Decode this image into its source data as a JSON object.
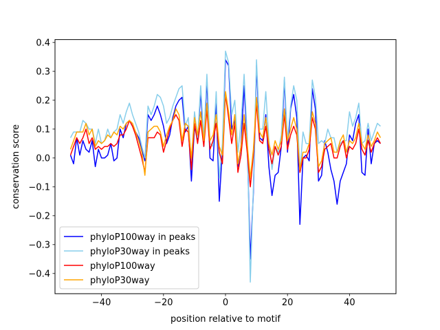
{
  "chart_data": {
    "type": "line",
    "title": "",
    "xlabel": "position relative to motif",
    "ylabel": "conservation score",
    "xlim": [
      -55,
      55
    ],
    "ylim": [
      -0.47,
      0.41
    ],
    "xticks": [
      -40,
      -20,
      0,
      20,
      40
    ],
    "yticks": [
      -0.4,
      -0.3,
      -0.2,
      -0.1,
      0.0,
      0.1,
      0.2,
      0.3,
      0.4
    ],
    "xtick_labels": [
      "−40",
      "−20",
      "0",
      "20",
      "40"
    ],
    "ytick_labels": [
      "−0.4",
      "−0.3",
      "−0.2",
      "−0.1",
      "0.0",
      "0.1",
      "0.2",
      "0.3",
      "0.4"
    ],
    "grid": false,
    "legend_position": "lower-left",
    "x": [
      -50,
      -49,
      -48,
      -47,
      -46,
      -45,
      -44,
      -43,
      -42,
      -41,
      -40,
      -39,
      -38,
      -37,
      -36,
      -35,
      -34,
      -33,
      -32,
      -31,
      -30,
      -29,
      -28,
      -27,
      -26,
      -25,
      -24,
      -23,
      -22,
      -21,
      -20,
      -19,
      -18,
      -17,
      -16,
      -15,
      -14,
      -13,
      -12,
      -11,
      -10,
      -9,
      -8,
      -7,
      -6,
      -5,
      -4,
      -3,
      -2,
      -1,
      0,
      1,
      2,
      3,
      4,
      5,
      6,
      7,
      8,
      9,
      10,
      11,
      12,
      13,
      14,
      15,
      16,
      17,
      18,
      19,
      20,
      21,
      22,
      23,
      24,
      25,
      26,
      27,
      28,
      29,
      30,
      31,
      32,
      33,
      34,
      35,
      36,
      37,
      38,
      39,
      40,
      41,
      42,
      43,
      44,
      45,
      46,
      47,
      48,
      49,
      50
    ],
    "series": [
      {
        "name": "phyloP100way in peaks",
        "color": "#0000ff",
        "values": [
          0.01,
          -0.02,
          0.07,
          0.01,
          0.06,
          0.03,
          0.02,
          0.06,
          -0.03,
          0.03,
          0.0,
          0.0,
          0.01,
          0.05,
          -0.01,
          0.0,
          0.1,
          0.07,
          0.12,
          0.13,
          0.11,
          0.09,
          0.07,
          0.03,
          -0.01,
          0.15,
          0.13,
          0.15,
          0.18,
          0.15,
          0.11,
          0.05,
          0.08,
          0.14,
          0.18,
          0.2,
          0.21,
          0.09,
          0.11,
          -0.08,
          0.11,
          0.06,
          0.23,
          0.04,
          0.27,
          0.0,
          -0.01,
          0.19,
          -0.15,
          0.03,
          0.34,
          0.32,
          0.1,
          0.13,
          -0.03,
          0.04,
          0.25,
          0.05,
          -0.35,
          -0.12,
          0.32,
          0.07,
          0.06,
          0.15,
          -0.03,
          -0.13,
          -0.06,
          -0.05,
          0.04,
          0.27,
          0.02,
          0.17,
          0.22,
          0.14,
          -0.23,
          0.0,
          0.01,
          -0.01,
          0.24,
          0.17,
          -0.08,
          -0.06,
          0.06,
          0.02,
          -0.04,
          -0.08,
          -0.16,
          -0.08,
          -0.05,
          -0.02,
          0.08,
          0.06,
          0.12,
          0.15,
          -0.05,
          -0.06,
          0.1,
          -0.02,
          0.05,
          0.06,
          0.05
        ]
      },
      {
        "name": "phyloP30way in peaks",
        "color": "#87ceeb",
        "values": [
          0.07,
          0.09,
          0.09,
          0.09,
          0.13,
          0.12,
          0.1,
          0.1,
          0.05,
          0.1,
          0.05,
          0.06,
          0.1,
          0.07,
          0.09,
          0.1,
          0.15,
          0.12,
          0.16,
          0.19,
          0.15,
          0.12,
          0.09,
          0.04,
          0.0,
          0.18,
          0.15,
          0.18,
          0.22,
          0.21,
          0.18,
          0.12,
          0.14,
          0.18,
          0.21,
          0.24,
          0.25,
          0.11,
          0.14,
          -0.02,
          0.16,
          0.07,
          0.25,
          0.07,
          0.29,
          0.05,
          0.04,
          0.23,
          -0.07,
          0.05,
          0.37,
          0.33,
          0.15,
          0.2,
          0.02,
          0.12,
          0.29,
          0.08,
          -0.43,
          -0.1,
          0.34,
          0.1,
          0.1,
          0.23,
          0.06,
          -0.04,
          0.04,
          0.02,
          0.08,
          0.28,
          0.06,
          0.18,
          0.25,
          0.2,
          -0.05,
          0.09,
          0.05,
          0.05,
          0.27,
          0.21,
          0.05,
          0.06,
          0.05,
          0.1,
          0.07,
          0.07,
          0.02,
          0.05,
          0.06,
          0.06,
          0.16,
          0.11,
          0.14,
          0.19,
          0.05,
          0.06,
          0.12,
          0.06,
          0.09,
          0.12,
          0.11
        ]
      },
      {
        "name": "phyloP100way",
        "color": "#ff0000",
        "values": [
          0.01,
          0.04,
          0.07,
          0.05,
          0.07,
          0.1,
          0.05,
          0.07,
          0.03,
          0.04,
          0.03,
          0.04,
          0.04,
          0.05,
          0.04,
          0.05,
          0.08,
          0.08,
          0.1,
          0.13,
          0.11,
          0.08,
          0.04,
          0.0,
          -0.05,
          0.07,
          0.07,
          0.07,
          0.09,
          0.08,
          0.02,
          0.06,
          0.1,
          0.13,
          0.15,
          0.13,
          0.04,
          0.1,
          0.09,
          -0.04,
          0.12,
          0.05,
          0.13,
          0.04,
          0.17,
          0.03,
          0.06,
          0.12,
          0.02,
          -0.02,
          0.22,
          0.14,
          0.05,
          0.12,
          -0.05,
          0.01,
          0.12,
          0.02,
          -0.1,
          0.01,
          0.19,
          0.06,
          0.05,
          0.11,
          0.03,
          -0.02,
          0.04,
          0.01,
          0.04,
          0.15,
          0.03,
          0.08,
          0.11,
          0.08,
          -0.05,
          0.0,
          0.0,
          0.03,
          0.14,
          0.1,
          -0.05,
          -0.03,
          0.03,
          0.04,
          0.05,
          0.0,
          0.0,
          0.04,
          0.06,
          0.0,
          0.04,
          0.03,
          0.05,
          0.1,
          0.03,
          0.01,
          0.06,
          0.02,
          0.05,
          0.07,
          0.05
        ]
      },
      {
        "name": "phyloP30way",
        "color": "#ffa500",
        "values": [
          0.03,
          0.06,
          0.09,
          0.09,
          0.09,
          0.12,
          0.08,
          0.1,
          0.04,
          0.06,
          0.05,
          0.06,
          0.08,
          0.07,
          0.09,
          0.08,
          0.11,
          0.1,
          0.12,
          0.13,
          0.12,
          0.09,
          0.06,
          0.02,
          -0.06,
          0.09,
          0.1,
          0.11,
          0.11,
          0.09,
          0.04,
          0.08,
          0.11,
          0.13,
          0.17,
          0.15,
          0.06,
          0.12,
          0.11,
          0.0,
          0.14,
          0.08,
          0.16,
          0.06,
          0.19,
          0.06,
          0.08,
          0.15,
          0.04,
          0.01,
          0.23,
          0.16,
          0.08,
          0.15,
          -0.02,
          0.04,
          0.15,
          0.05,
          -0.07,
          0.03,
          0.21,
          0.09,
          0.07,
          0.14,
          0.05,
          0.01,
          0.06,
          0.03,
          0.06,
          0.17,
          0.06,
          0.1,
          0.14,
          0.1,
          -0.04,
          0.02,
          0.02,
          0.05,
          0.16,
          0.12,
          -0.03,
          -0.01,
          0.05,
          0.06,
          0.07,
          0.02,
          0.02,
          0.06,
          0.08,
          0.02,
          0.06,
          0.05,
          0.07,
          0.12,
          0.05,
          0.03,
          0.08,
          0.04,
          0.06,
          0.09,
          0.07
        ]
      }
    ]
  }
}
